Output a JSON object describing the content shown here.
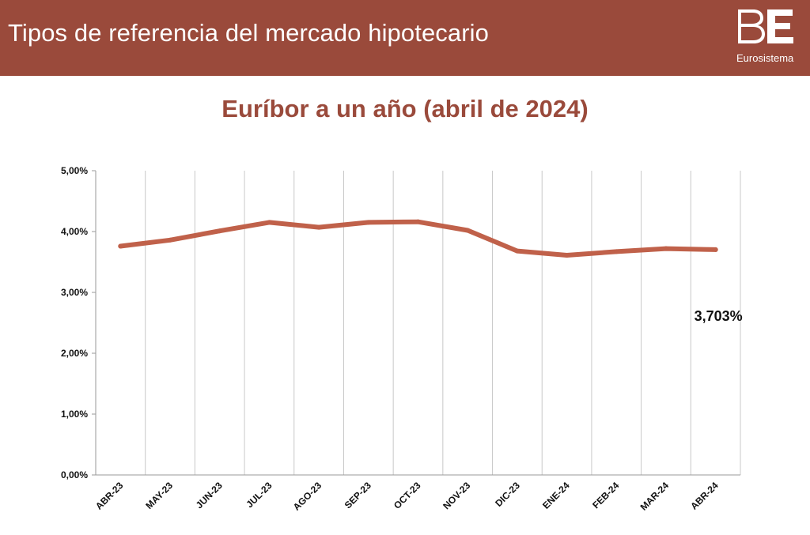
{
  "header": {
    "title": "Tipos de referencia del mercado hipotecario",
    "logo_text": "BE",
    "logo_subtext": "Eurosistema",
    "background_color": "#9a4a3b"
  },
  "chart_data": {
    "type": "line",
    "title": "Euríbor a un año (abril de 2024)",
    "xlabel": "",
    "ylabel": "",
    "categories": [
      "ABR-23",
      "MAY-23",
      "JUN-23",
      "JUL-23",
      "AGO-23",
      "SEP-23",
      "OCT-23",
      "NOV-23",
      "DIC-23",
      "ENE-24",
      "FEB-24",
      "MAR-24",
      "ABR-24"
    ],
    "series": [
      {
        "values": [
          3.76,
          3.86,
          4.01,
          4.15,
          4.07,
          4.15,
          4.16,
          4.02,
          3.68,
          3.61,
          3.67,
          3.72,
          3.703
        ],
        "color": "#c0614a"
      }
    ],
    "ylim": [
      0,
      5
    ],
    "y_ticks": [
      "0,00%",
      "1,00%",
      "2,00%",
      "3,00%",
      "4,00%",
      "5,00%"
    ],
    "y_tick_values": [
      0,
      1,
      2,
      3,
      4,
      5
    ],
    "grid": "vertical",
    "legend": "none",
    "annotations": [
      {
        "category": "ABR-24",
        "text": "3,703%"
      }
    ]
  }
}
